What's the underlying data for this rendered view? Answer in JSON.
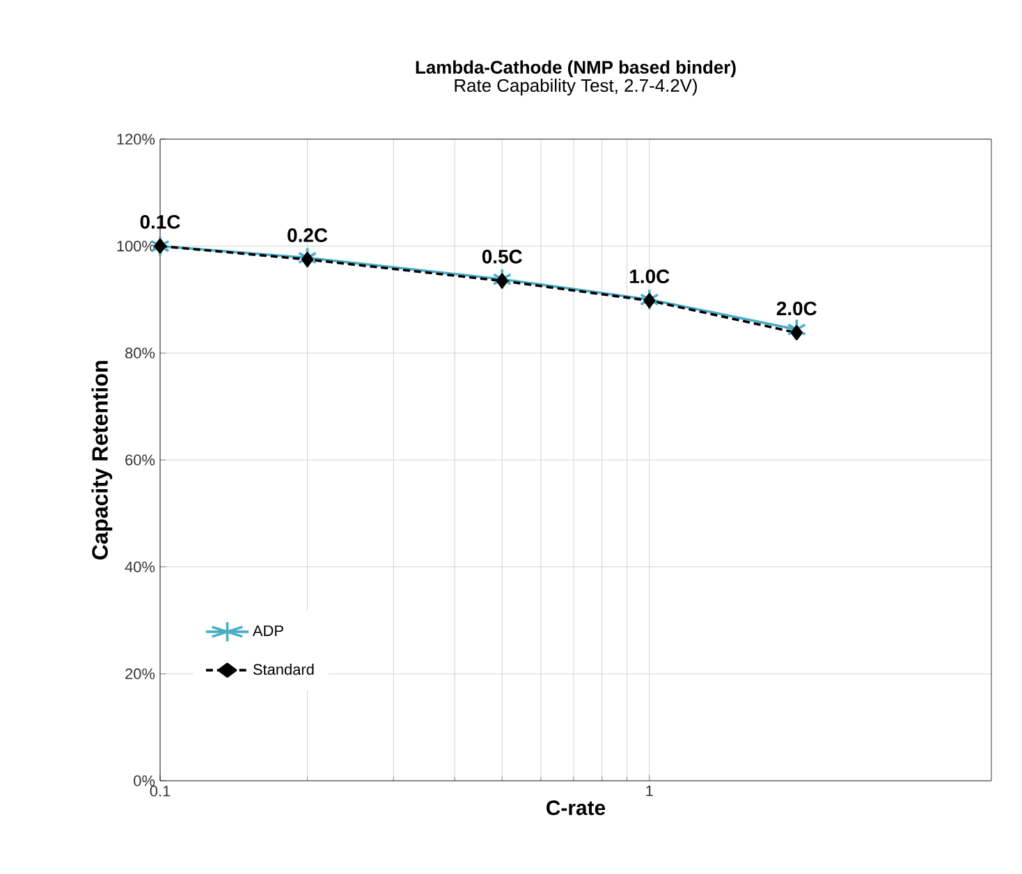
{
  "chart_data": {
    "type": "line",
    "title": "Lambda-Cathode (NMP based binder)",
    "subtitle": "Rate Capability Test, 2.7-4.2V)",
    "xlabel": "C-rate",
    "ylabel": "Capacity Retention",
    "log": "x",
    "xlim": [
      0.1,
      5
    ],
    "xticks": [
      0.1,
      1
    ],
    "ylim": [
      0,
      120
    ],
    "yticks": [
      {
        "value": 0,
        "label": "0%"
      },
      {
        "value": 20,
        "label": "20%"
      },
      {
        "value": 40,
        "label": "40%"
      },
      {
        "value": 60,
        "label": "60%"
      },
      {
        "value": 80,
        "label": "80%"
      },
      {
        "value": 100,
        "label": "100%"
      },
      {
        "value": 120,
        "label": "120%"
      }
    ],
    "grid": true,
    "legend": "left",
    "x": [
      0.1,
      0.2,
      0.5,
      1,
      2
    ],
    "series": [
      {
        "name": "ADP",
        "color": "#4bacc6",
        "marker": "cross",
        "line_style": "solid",
        "values": [
          100,
          97.8,
          93.8,
          90,
          84.4
        ]
      },
      {
        "name": "Standard",
        "color": "#000000",
        "marker": "diamond",
        "line_style": "dashed",
        "values": [
          100,
          97.5,
          93.5,
          89.8,
          83.8
        ]
      }
    ],
    "annotations": [
      {
        "text": "0.1C",
        "x": 0.1,
        "y": 100
      },
      {
        "text": "0.2C",
        "x": 0.2,
        "y": 97.5
      },
      {
        "text": "0.5C",
        "x": 0.5,
        "y": 93.5
      },
      {
        "text": "1.0C",
        "x": 1,
        "y": 89.8
      },
      {
        "text": "2.0C",
        "x": 2,
        "y": 83.8
      }
    ]
  }
}
